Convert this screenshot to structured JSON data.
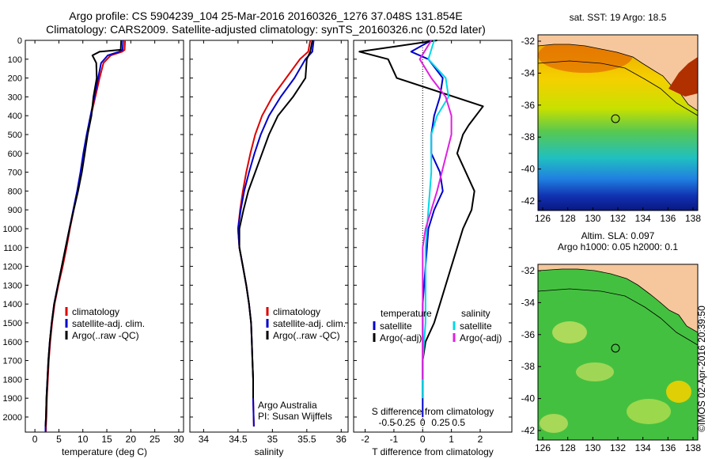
{
  "header": {
    "line1": "Argo profile: CS 5904239_104 25-Mar-2016 20160326_1276 37.048S 131.854E",
    "line2": "Climatology: CARS2009. Satellite-adjusted climatology: synTS_20160326.nc (0.52d later)"
  },
  "colors": {
    "climatology": "#dd0000",
    "satellite": "#0000cc",
    "argo": "#000000",
    "sal_satellite": "#00d8e8",
    "sal_argo": "#e020e0"
  },
  "chart_data": [
    {
      "type": "line",
      "id": "temperature",
      "xlabel": "temperature (deg C)",
      "ylabel": "",
      "xlim": [
        -2,
        31
      ],
      "ylim": [
        2080,
        0
      ],
      "xticks": [
        0,
        5,
        10,
        15,
        20,
        25,
        30
      ],
      "yticks": [
        0,
        100,
        200,
        300,
        400,
        500,
        600,
        700,
        800,
        900,
        1000,
        1100,
        1200,
        1300,
        1400,
        1500,
        1600,
        1700,
        1800,
        1900,
        2000
      ],
      "legend": [
        "climatology",
        "satellite-adj. clim.",
        "Argo(..raw -QC)"
      ],
      "series": [
        {
          "name": "climatology",
          "color": "#dd0000",
          "x": [
            18.8,
            18.7,
            18.2,
            15.8,
            14.3,
            13.5,
            12.6,
            11.7,
            10.9,
            10.2,
            9.6,
            8.9,
            8.1,
            7.3,
            6.6,
            5.8,
            4.9,
            4.1,
            3.6,
            3.2,
            2.9,
            2.7,
            2.5,
            2.4,
            2.3,
            2.3
          ],
          "y": [
            0,
            50,
            60,
            80,
            120,
            200,
            300,
            400,
            500,
            600,
            700,
            800,
            900,
            1000,
            1100,
            1200,
            1300,
            1400,
            1500,
            1600,
            1700,
            1800,
            1900,
            2000,
            2050,
            2080
          ]
        },
        {
          "name": "satellite-adj. clim.",
          "color": "#0000cc",
          "x": [
            18.4,
            18.3,
            17.6,
            15.2,
            13.8,
            13.2,
            12.4,
            11.6,
            10.8,
            10.1,
            9.5,
            8.8,
            8.0,
            7.2,
            6.4,
            5.6,
            4.8,
            4.0,
            3.5,
            3.1,
            2.8,
            2.6,
            2.4,
            2.3,
            2.2,
            2.2
          ],
          "y": [
            0,
            50,
            60,
            80,
            120,
            200,
            300,
            400,
            500,
            600,
            700,
            800,
            900,
            1000,
            1100,
            1200,
            1300,
            1400,
            1500,
            1600,
            1700,
            1800,
            1900,
            2000,
            2050,
            2080
          ]
        },
        {
          "name": "Argo(..raw -QC)",
          "color": "#000000",
          "x": [
            18.0,
            17.9,
            13.5,
            12.0,
            12.8,
            12.9,
            12.2,
            11.8,
            11.0,
            10.4,
            9.8,
            9.0,
            8.1,
            7.2,
            6.4,
            5.6,
            4.8,
            4.0,
            3.5,
            3.1,
            2.8,
            2.6,
            2.4,
            2.3,
            2.2
          ],
          "y": [
            0,
            50,
            60,
            80,
            120,
            200,
            300,
            400,
            500,
            600,
            700,
            800,
            900,
            1000,
            1100,
            1200,
            1300,
            1400,
            1500,
            1600,
            1700,
            1800,
            1900,
            2000,
            2050
          ]
        }
      ]
    },
    {
      "type": "line",
      "id": "salinity",
      "xlabel": "salinity",
      "xlim": [
        33.8,
        36.1
      ],
      "ylim": [
        2080,
        0
      ],
      "xticks": [
        34,
        34.5,
        35,
        35.5,
        36
      ],
      "legend": [
        "climatology",
        "satellite-adj. clim.",
        "Argo(..raw -QC)"
      ],
      "annotation": [
        "Argo Australia",
        "PI: Susan Wijffels"
      ],
      "series": [
        {
          "name": "climatology",
          "color": "#dd0000",
          "x": [
            35.55,
            35.52,
            35.4,
            35.2,
            35.0,
            34.85,
            34.75,
            34.68,
            34.62,
            34.57,
            34.53,
            34.5,
            34.52,
            34.57,
            34.62,
            34.66,
            34.69,
            34.7,
            34.71,
            34.72,
            34.72,
            34.73
          ],
          "y": [
            0,
            60,
            100,
            200,
            300,
            400,
            500,
            600,
            700,
            800,
            900,
            1000,
            1100,
            1200,
            1300,
            1400,
            1500,
            1600,
            1700,
            1800,
            1900,
            2050
          ]
        },
        {
          "name": "satellite-adj. clim.",
          "color": "#0000cc",
          "x": [
            35.6,
            35.58,
            35.48,
            35.32,
            35.12,
            34.95,
            34.83,
            34.74,
            34.66,
            34.59,
            34.54,
            34.5,
            34.52,
            34.57,
            34.62,
            34.66,
            34.69,
            34.7,
            34.71,
            34.72,
            34.72,
            34.73
          ],
          "y": [
            0,
            60,
            100,
            200,
            300,
            400,
            500,
            600,
            700,
            800,
            900,
            1000,
            1100,
            1200,
            1300,
            1400,
            1500,
            1600,
            1700,
            1800,
            1900,
            2050
          ]
        },
        {
          "name": "Argo(..raw -QC)",
          "color": "#000000",
          "x": [
            35.58,
            35.55,
            35.5,
            35.48,
            35.3,
            35.08,
            34.95,
            34.85,
            34.75,
            34.65,
            34.58,
            34.52,
            34.52,
            34.57,
            34.62,
            34.66,
            34.69,
            34.7,
            34.71,
            34.72,
            34.72
          ],
          "y": [
            0,
            60,
            100,
            200,
            300,
            400,
            500,
            600,
            700,
            800,
            900,
            1000,
            1100,
            1200,
            1300,
            1400,
            1500,
            1600,
            1700,
            1800,
            1900
          ]
        }
      ]
    },
    {
      "type": "line",
      "id": "difference",
      "xlabel": "T difference from climatology",
      "xlabel2": "S difference from climatology",
      "xlim": [
        -2.4,
        3.1
      ],
      "ylim": [
        2080,
        0
      ],
      "xticks": [
        -2,
        -1,
        0,
        1,
        2
      ],
      "xticklabels": [
        "-2",
        "-1",
        "0",
        "1",
        "2"
      ],
      "sticks": [
        -1.25,
        -0.625,
        0,
        0.625,
        1.25
      ],
      "sticklabels": [
        "-0.5",
        "-0.25",
        "0",
        "0.25",
        "0.5"
      ],
      "legend_temperature": {
        "title": "temperature",
        "items": [
          "satellite",
          "Argo(-adj)"
        ]
      },
      "legend_salinity": {
        "title": "salinity",
        "items": [
          "satellite",
          "Argo(-adj)"
        ]
      },
      "series": [
        {
          "name": "temperature satellite",
          "color": "#0000cc",
          "x": [
            0.3,
            -0.4,
            0.2,
            0.7,
            0.6,
            0.4,
            0.3,
            0.3,
            0.6,
            0.7,
            0.4,
            0.2,
            0.1,
            0.0,
            0.0,
            0.0,
            0.0,
            0.0,
            0.0,
            0.0
          ],
          "y": [
            0,
            60,
            100,
            200,
            300,
            400,
            500,
            600,
            700,
            800,
            900,
            1000,
            1200,
            1400,
            1500,
            1600,
            1700,
            1800,
            1900,
            2000
          ]
        },
        {
          "name": "temperature Argo(-adj)",
          "color": "#000000",
          "x": [
            0.5,
            -2.2,
            -1.2,
            -0.9,
            2.1,
            1.6,
            1.4,
            1.2,
            1.5,
            1.8,
            1.7,
            1.4,
            1.0,
            0.6,
            0.4,
            0.1,
            0.0,
            0.0,
            0.0
          ],
          "y": [
            0,
            60,
            100,
            200,
            350,
            450,
            500,
            600,
            700,
            800,
            900,
            1000,
            1200,
            1400,
            1500,
            1600,
            1700,
            1800,
            1900
          ]
        },
        {
          "name": "salinity satellite",
          "color": "#00d8e8",
          "x": [
            0.4,
            0.2,
            0.8,
            0.9,
            0.5,
            0.3,
            0.3,
            0.2,
            0.1,
            0.1,
            0.1,
            0.0,
            0.0
          ],
          "y": [
            0,
            100,
            200,
            300,
            400,
            500,
            700,
            900,
            1100,
            1300,
            1500,
            1700,
            1900
          ]
        },
        {
          "name": "salinity Argo(-adj)",
          "color": "#e020e0",
          "x": [
            0.3,
            -0.1,
            0.3,
            0.8,
            1.0,
            1.0,
            0.5,
            0.3,
            0.1,
            0.0,
            0.0,
            0.0,
            0.0,
            0.0
          ],
          "y": [
            0,
            100,
            200,
            300,
            400,
            500,
            800,
            900,
            1000,
            1100,
            1300,
            1500,
            1700,
            1800
          ]
        }
      ]
    }
  ],
  "maps": {
    "sst": {
      "title": "sat. SST: 19 Argo: 18.5",
      "xticks": [
        "126",
        "128",
        "130",
        "132",
        "134",
        "136",
        "138"
      ],
      "yticks": [
        "-32",
        "-34",
        "-36",
        "-38",
        "-40",
        "-42"
      ]
    },
    "sla": {
      "title1": "Altim. SLA: 0.097",
      "title2": "Argo h1000: 0.05 h2000: 0.1",
      "xticks": [
        "126",
        "128",
        "130",
        "132",
        "134",
        "136",
        "138"
      ],
      "yticks": [
        "-32",
        "-34",
        "-36",
        "-38",
        "-40",
        "-42"
      ]
    }
  },
  "footer": {
    "timestamp": "©IMOS 02-Apr-2016 20:39:50"
  }
}
